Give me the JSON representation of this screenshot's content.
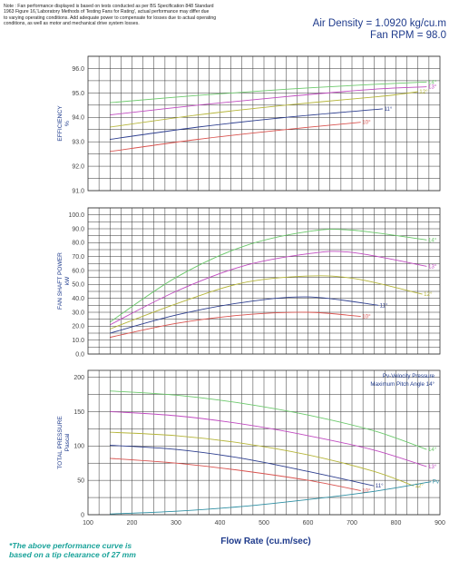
{
  "note": "Note : Fan performance displayed is based on tests conducted as per BS Specification 848 Standard\n1963 Figure 16,'Laboratory Methods of Testing Fans for Rating', actual performance may differ due\nto varying operating conditions. Add adequate power to compensate for losses due to actual operating\nconditions, as well as motor and mechanical drive system losses.",
  "air_density": "Air Density = 1.0920 kg/cu.m",
  "fan_rpm": "Fan RPM = 98.0",
  "footnote": "*The above performance curve is\nbased on a tip clearance of 27 mm",
  "colors": {
    "10°": "#d9534f",
    "11°": "#2e3f8f",
    "12°": "#b5b53a",
    "13°": "#c04bc0",
    "14°": "#6cc96c",
    "Pv": "#2e8fa3",
    "grid": "#333333",
    "axis_label": "#1f3b8c"
  },
  "chart_data": [
    {
      "type": "line",
      "xlabel": "Flow Rate (cu.m/sec)",
      "ylabel": "EFFICIENCY\n%",
      "xlim": [
        100,
        900
      ],
      "x_ticks": [
        100,
        200,
        300,
        400,
        500,
        600,
        700,
        800,
        900
      ],
      "ylim": [
        91.0,
        96.5
      ],
      "y_ticks": [
        "91.0",
        "92.0",
        "93.0",
        "94.0",
        "95.0",
        "96.0"
      ],
      "grid": true,
      "series": [
        {
          "name": "10°",
          "x": [
            150,
            350,
            550,
            720
          ],
          "values": [
            92.6,
            93.1,
            93.5,
            93.8
          ]
        },
        {
          "name": "11°",
          "x": [
            150,
            350,
            550,
            770
          ],
          "values": [
            93.1,
            93.6,
            94.0,
            94.35
          ]
        },
        {
          "name": "12°",
          "x": [
            150,
            350,
            550,
            760,
            810,
            850
          ],
          "values": [
            93.6,
            94.1,
            94.5,
            94.85,
            94.95,
            95.05
          ]
        },
        {
          "name": "13°",
          "x": [
            150,
            350,
            550,
            750,
            870
          ],
          "values": [
            94.1,
            94.5,
            94.85,
            95.15,
            95.25
          ]
        },
        {
          "name": "14°",
          "x": [
            150,
            350,
            550,
            750,
            870
          ],
          "values": [
            94.6,
            94.9,
            95.15,
            95.35,
            95.45
          ]
        }
      ]
    },
    {
      "type": "line",
      "ylabel": "FAN SHAFT POWER\nkW",
      "xlim": [
        100,
        900
      ],
      "ylim": [
        0,
        105
      ],
      "y_ticks": [
        "0.0",
        "10.0",
        "20.0",
        "30.0",
        "40.0",
        "50.0",
        "60.0",
        "70.0",
        "80.0",
        "90.0",
        "100.0"
      ],
      "grid": true,
      "series": [
        {
          "name": "10°",
          "x": [
            150,
            300,
            450,
            600,
            720
          ],
          "values": [
            12,
            22,
            28,
            30,
            27
          ]
        },
        {
          "name": "11°",
          "x": [
            150,
            300,
            450,
            600,
            760
          ],
          "values": [
            15,
            28,
            37,
            41,
            35
          ]
        },
        {
          "name": "12°",
          "x": [
            150,
            300,
            450,
            600,
            710,
            860
          ],
          "values": [
            18,
            36,
            51,
            56,
            54,
            43
          ]
        },
        {
          "name": "13°",
          "x": [
            150,
            300,
            450,
            600,
            700,
            870
          ],
          "values": [
            21,
            45,
            63,
            72,
            73,
            63
          ]
        },
        {
          "name": "14°",
          "x": [
            150,
            300,
            450,
            600,
            700,
            870
          ],
          "values": [
            23,
            55,
            77,
            88,
            89,
            82
          ]
        }
      ]
    },
    {
      "type": "line",
      "ylabel": "TOTAL PRESSURE\nPascal",
      "xlim": [
        100,
        900
      ],
      "ylim": [
        0,
        210
      ],
      "y_ticks": [
        "0",
        "50",
        "100",
        "150",
        "200"
      ],
      "grid": true,
      "annotations": [
        "Pv-Velocity Pressure",
        "Maximum Pitch Angle 14°"
      ],
      "series": [
        {
          "name": "10°",
          "x": [
            150,
            300,
            450,
            600,
            720
          ],
          "values": [
            82,
            75,
            64,
            50,
            35
          ]
        },
        {
          "name": "11°",
          "x": [
            150,
            300,
            450,
            600,
            750
          ],
          "values": [
            101,
            95,
            82,
            63,
            42
          ]
        },
        {
          "name": "12°",
          "x": [
            150,
            300,
            450,
            600,
            750,
            840
          ],
          "values": [
            120,
            115,
            104,
            87,
            63,
            42
          ]
        },
        {
          "name": "13°",
          "x": [
            150,
            300,
            450,
            600,
            750,
            870
          ],
          "values": [
            150,
            144,
            132,
            115,
            94,
            70
          ]
        },
        {
          "name": "14°",
          "x": [
            150,
            300,
            450,
            600,
            750,
            870
          ],
          "values": [
            180,
            174,
            162,
            145,
            122,
            95
          ]
        },
        {
          "name": "Pv",
          "x": [
            150,
            300,
            450,
            600,
            750,
            880
          ],
          "values": [
            1,
            5,
            12,
            22,
            34,
            48
          ]
        }
      ]
    }
  ]
}
